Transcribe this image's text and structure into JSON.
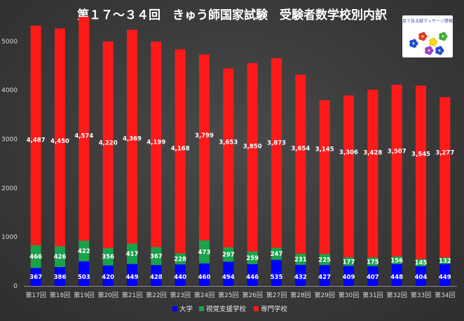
{
  "chart_data": {
    "type": "bar",
    "stacked": true,
    "title": "第１７～３４回　きゅう師国家試験　受験者数学校別内訳",
    "categories": [
      "第17回",
      "第18回",
      "第19回",
      "第20回",
      "第21回",
      "第22回",
      "第23回",
      "第24回",
      "第25回",
      "第26回",
      "第27回",
      "第28回",
      "第29回",
      "第30回",
      "第31回",
      "第32回",
      "第33回",
      "第34回"
    ],
    "series": [
      {
        "name": "大学",
        "color": "#0000ff",
        "values": [
          367,
          386,
          503,
          420,
          449,
          428,
          440,
          460,
          494,
          446,
          535,
          432,
          427,
          409,
          407,
          448,
          404,
          449
        ]
      },
      {
        "name": "視覚支援学校",
        "color": "#1aa24a",
        "values": [
          466,
          426,
          422,
          356,
          417,
          367,
          228,
          473,
          297,
          259,
          247,
          231,
          225,
          177,
          175,
          156,
          145,
          132
        ]
      },
      {
        "name": "専門学校",
        "color": "#ff1a1a",
        "values": [
          4487,
          4450,
          4574,
          4220,
          4369,
          4199,
          4168,
          3799,
          3653,
          3850,
          3873,
          3654,
          3145,
          3306,
          3428,
          3507,
          3545,
          3277
        ]
      }
    ],
    "ylim": [
      0,
      5500
    ],
    "yticks": [
      0,
      1000,
      2000,
      3000,
      4000,
      5000
    ],
    "grid": false,
    "legend": "bottom"
  },
  "logo": {
    "text": "目で見る鍼マッサージ情報",
    "colors": [
      "#1d4fd1",
      "#e23a2e",
      "#f0d51a",
      "#3fae3a",
      "#9a3fc9"
    ]
  }
}
